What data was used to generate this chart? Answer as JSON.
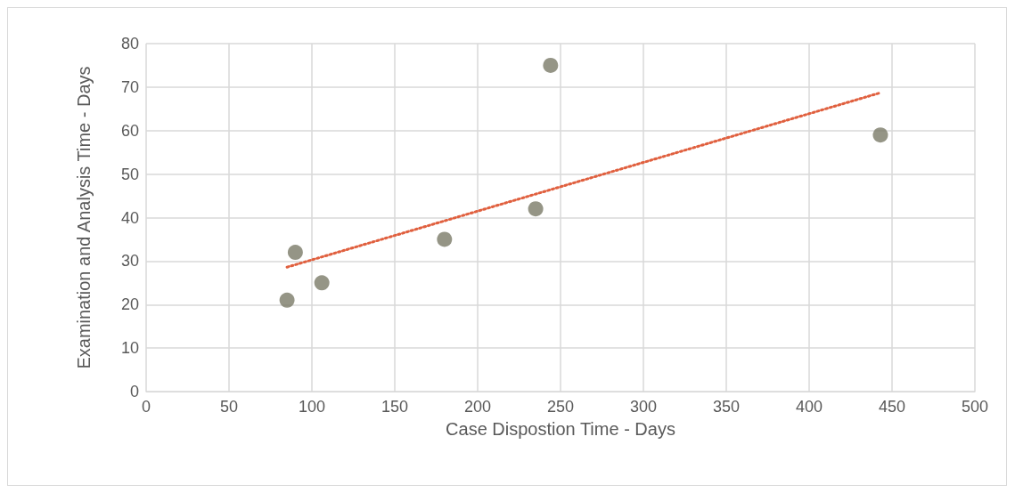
{
  "chart_data": {
    "type": "scatter",
    "xlabel": "Case Dispostion Time - Days",
    "ylabel": "Examination and Analysis Time - Days",
    "series": [
      {
        "color": "#7a7a68",
        "x": [
          85,
          90,
          106,
          180,
          235,
          244,
          443
        ],
        "values": [
          21,
          32,
          25,
          35,
          42,
          75,
          59
        ],
        "marker": "circle"
      },
      {
        "type": "line",
        "color": "#e0603f",
        "x": [
          85,
          443
        ],
        "values": [
          28.6,
          68.7
        ],
        "line_style": "dotted",
        "marker": "none"
      }
    ],
    "xlim": [
      0,
      500
    ],
    "xticks": [
      0,
      50,
      100,
      150,
      200,
      250,
      300,
      350,
      400,
      450,
      500
    ],
    "ylim": [
      0,
      80
    ],
    "yticks": [
      0,
      10,
      20,
      30,
      40,
      50,
      60,
      70,
      80
    ],
    "grid": true
  }
}
